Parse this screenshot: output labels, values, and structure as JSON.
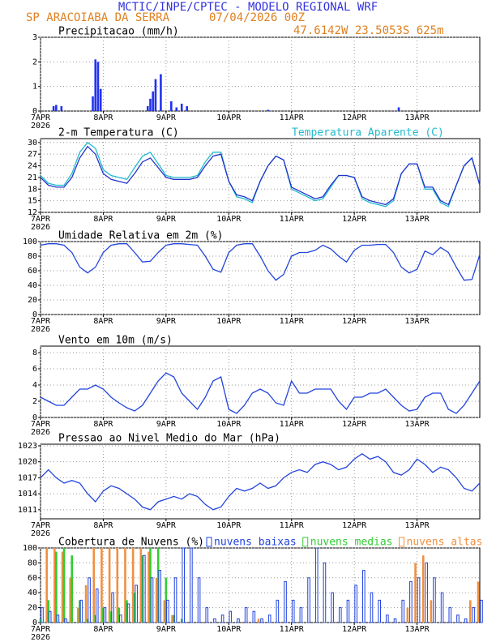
{
  "header": {
    "title": "MCTIC/INPE/CPTEC - MODELO REGIONAL WRF",
    "location": "SP ARACOIABA DA SERRA",
    "run": "07/04/2026 00Z",
    "coords": "47.6142W 23.5053S 625m"
  },
  "chart_data": [
    {
      "type": "bar",
      "title": "Precipitacao (mm/h)",
      "year_label": "2026",
      "x": [
        5,
        6,
        8,
        20,
        21,
        22,
        23,
        41,
        42,
        43,
        44,
        46,
        50,
        52,
        54,
        56,
        87,
        137
      ],
      "series": [
        {
          "color": "#2233ee",
          "values": [
            0.2,
            0.25,
            0.2,
            0.6,
            2.1,
            2.0,
            0.9,
            0.2,
            0.5,
            0.8,
            1.3,
            1.5,
            0.4,
            0.15,
            0.3,
            0.2,
            0.05,
            0.15
          ]
        }
      ],
      "xlim": [
        0,
        168
      ],
      "xticks": [
        {
          "value": 0,
          "label": "7APR"
        },
        {
          "value": 24,
          "label": "8APR"
        },
        {
          "value": 48,
          "label": "9APR"
        },
        {
          "value": 72,
          "label": "10APR"
        },
        {
          "value": 96,
          "label": "11APR"
        },
        {
          "value": 120,
          "label": "12APR"
        },
        {
          "value": 144,
          "label": "13APR"
        }
      ],
      "ylim": [
        0,
        3
      ],
      "yticks": [
        0,
        1,
        2,
        3
      ],
      "grid": true
    },
    {
      "type": "line",
      "year_label": "2026",
      "x": [
        0,
        3,
        6,
        9,
        12,
        15,
        18,
        21,
        24,
        27,
        30,
        33,
        36,
        39,
        42,
        45,
        48,
        51,
        54,
        57,
        60,
        63,
        66,
        69,
        72,
        75,
        78,
        81,
        84,
        87,
        90,
        93,
        96,
        99,
        102,
        105,
        108,
        111,
        114,
        117,
        120,
        123,
        126,
        129,
        132,
        135,
        138,
        141,
        144,
        147,
        150,
        153,
        156,
        159,
        162,
        165,
        168
      ],
      "series": [
        {
          "name": "2-m Temperatura (C)",
          "color": "#2233cc",
          "values": [
            21,
            19,
            18.5,
            18.5,
            21,
            26,
            29,
            27,
            22,
            20.5,
            20,
            19.5,
            22,
            25,
            26,
            23.5,
            21,
            20.5,
            20.5,
            20.5,
            21,
            24,
            26.5,
            27,
            20,
            16.5,
            16,
            15,
            20,
            24,
            26.5,
            25.5,
            18.5,
            17.5,
            16.5,
            15.5,
            16,
            19,
            21.5,
            21.5,
            21,
            16,
            15,
            14.5,
            14,
            15.5,
            22,
            24.5,
            24.5,
            18.5,
            18.5,
            15,
            14,
            19,
            24,
            26,
            19
          ]
        },
        {
          "name": "Temperatura Aparente (C)",
          "color": "#22bbcc",
          "values": [
            21.5,
            19.5,
            19,
            19,
            22,
            27.5,
            30,
            28.5,
            23,
            21.5,
            21,
            20.5,
            23.5,
            26.5,
            27.5,
            24.5,
            21.5,
            21,
            21,
            21,
            21.5,
            25,
            27.5,
            27.5,
            20,
            16,
            15.5,
            14.5,
            20,
            24,
            26.5,
            25.5,
            18,
            17,
            16,
            15,
            15.5,
            18.5,
            21.5,
            21.5,
            21,
            15.5,
            14.5,
            14,
            13.5,
            15,
            22,
            24.5,
            24.5,
            18,
            18,
            14.5,
            13.5,
            19,
            24,
            26,
            19
          ]
        }
      ],
      "xlim": [
        0,
        168
      ],
      "xticks": [
        {
          "value": 0,
          "label": "7APR"
        },
        {
          "value": 24,
          "label": "8APR"
        },
        {
          "value": 48,
          "label": "9APR"
        },
        {
          "value": 72,
          "label": "10APR"
        },
        {
          "value": 96,
          "label": "11APR"
        },
        {
          "value": 120,
          "label": "12APR"
        },
        {
          "value": 144,
          "label": "13APR"
        }
      ],
      "ylim": [
        12,
        31
      ],
      "yticks": [
        12,
        15,
        18,
        21,
        24,
        27,
        30
      ],
      "grid": true
    },
    {
      "type": "line",
      "title": "Umidade Relativa em 2m (%)",
      "year_label": "2026",
      "x": [
        0,
        3,
        6,
        9,
        12,
        15,
        18,
        21,
        24,
        27,
        30,
        33,
        36,
        39,
        42,
        45,
        48,
        51,
        54,
        57,
        60,
        63,
        66,
        69,
        72,
        75,
        78,
        81,
        84,
        87,
        90,
        93,
        96,
        99,
        102,
        105,
        108,
        111,
        114,
        117,
        120,
        123,
        126,
        129,
        132,
        135,
        138,
        141,
        144,
        147,
        150,
        153,
        156,
        159,
        162,
        165,
        168
      ],
      "series": [
        {
          "color": "#2244dd",
          "values": [
            95,
            97,
            97,
            95,
            85,
            65,
            57,
            65,
            85,
            95,
            97,
            97,
            85,
            72,
            73,
            85,
            95,
            97,
            97,
            96,
            95,
            80,
            62,
            58,
            85,
            95,
            97,
            97,
            80,
            60,
            47,
            55,
            80,
            85,
            85,
            88,
            95,
            90,
            80,
            72,
            88,
            95,
            95,
            96,
            96,
            85,
            65,
            57,
            62,
            87,
            82,
            92,
            85,
            65,
            47,
            48,
            82
          ]
        }
      ],
      "xlim": [
        0,
        168
      ],
      "xticks": [
        {
          "value": 0,
          "label": "7APR"
        },
        {
          "value": 24,
          "label": "8APR"
        },
        {
          "value": 48,
          "label": "9APR"
        },
        {
          "value": 72,
          "label": "10APR"
        },
        {
          "value": 96,
          "label": "11APR"
        },
        {
          "value": 120,
          "label": "12APR"
        },
        {
          "value": 144,
          "label": "13APR"
        }
      ],
      "ylim": [
        0,
        100
      ],
      "yticks": [
        0,
        20,
        40,
        60,
        80,
        100
      ],
      "grid": true
    },
    {
      "type": "line",
      "title": "Vento em 10m (m/s)",
      "year_label": "2026",
      "x": [
        0,
        3,
        6,
        9,
        12,
        15,
        18,
        21,
        24,
        27,
        30,
        33,
        36,
        39,
        42,
        45,
        48,
        51,
        54,
        57,
        60,
        63,
        66,
        69,
        72,
        75,
        78,
        81,
        84,
        87,
        90,
        93,
        96,
        99,
        102,
        105,
        108,
        111,
        114,
        117,
        120,
        123,
        126,
        129,
        132,
        135,
        138,
        141,
        144,
        147,
        150,
        153,
        156,
        159,
        162,
        165,
        168
      ],
      "series": [
        {
          "color": "#2244dd",
          "values": [
            2.5,
            2,
            1.5,
            1.5,
            2.5,
            3.5,
            3.5,
            4,
            3.5,
            2.5,
            1.8,
            1.2,
            0.8,
            1.5,
            3,
            4.5,
            5.5,
            5,
            3,
            2,
            1,
            2.5,
            4.5,
            5,
            1,
            0.5,
            1.5,
            3,
            3.5,
            3,
            1.8,
            1.5,
            4.5,
            3,
            3,
            3.5,
            3.5,
            3.5,
            2,
            1,
            2.5,
            2.5,
            3,
            3,
            3.5,
            2.5,
            1.5,
            0.8,
            1,
            2.5,
            3,
            3,
            1,
            0.5,
            1.5,
            3,
            4.5
          ]
        }
      ],
      "xlim": [
        0,
        168
      ],
      "xticks": [
        {
          "value": 0,
          "label": "7APR"
        },
        {
          "value": 24,
          "label": "8APR"
        },
        {
          "value": 48,
          "label": "9APR"
        },
        {
          "value": 72,
          "label": "10APR"
        },
        {
          "value": 96,
          "label": "11APR"
        },
        {
          "value": 120,
          "label": "12APR"
        },
        {
          "value": 144,
          "label": "13APR"
        }
      ],
      "ylim": [
        0,
        8.8
      ],
      "yticks": [
        0,
        2,
        4,
        6,
        8
      ],
      "grid": true
    },
    {
      "type": "line",
      "title": "Pressao ao Nivel Medio do Mar (hPa)",
      "year_label": "2026",
      "x": [
        0,
        3,
        6,
        9,
        12,
        15,
        18,
        21,
        24,
        27,
        30,
        33,
        36,
        39,
        42,
        45,
        48,
        51,
        54,
        57,
        60,
        63,
        66,
        69,
        72,
        75,
        78,
        81,
        84,
        87,
        90,
        93,
        96,
        99,
        102,
        105,
        108,
        111,
        114,
        117,
        120,
        123,
        126,
        129,
        132,
        135,
        138,
        141,
        144,
        147,
        150,
        153,
        156,
        159,
        162,
        165,
        168
      ],
      "series": [
        {
          "color": "#2244dd",
          "values": [
            1017,
            1018.5,
            1017,
            1016,
            1016.5,
            1016,
            1014,
            1012.5,
            1014.5,
            1015.5,
            1015,
            1014,
            1013,
            1011.5,
            1011,
            1012.5,
            1013,
            1013.5,
            1013,
            1014,
            1013.5,
            1012,
            1011,
            1011.5,
            1013.5,
            1015,
            1014.5,
            1015,
            1016,
            1015,
            1015.5,
            1017,
            1018,
            1018.5,
            1018,
            1019.5,
            1020,
            1019.5,
            1018.5,
            1019,
            1020.5,
            1021.5,
            1020.5,
            1021,
            1020,
            1018,
            1017.5,
            1018.5,
            1020.5,
            1019.5,
            1018,
            1019,
            1018.5,
            1017,
            1015,
            1014.5,
            1016
          ]
        }
      ],
      "xlim": [
        0,
        168
      ],
      "xticks": [
        {
          "value": 0,
          "label": "7APR"
        },
        {
          "value": 24,
          "label": "8APR"
        },
        {
          "value": 48,
          "label": "9APR"
        },
        {
          "value": 72,
          "label": "10APR"
        },
        {
          "value": 96,
          "label": "11APR"
        },
        {
          "value": 120,
          "label": "12APR"
        },
        {
          "value": 144,
          "label": "13APR"
        }
      ],
      "ylim": [
        1009.3,
        1023.3
      ],
      "yticks": [
        1011,
        1014,
        1017,
        1020,
        1023
      ],
      "grid": true
    },
    {
      "type": "bar",
      "title": "Cobertura de Nuvens (%)",
      "year_label": "2026",
      "x": [
        0,
        3,
        6,
        9,
        12,
        15,
        18,
        21,
        24,
        27,
        30,
        33,
        36,
        39,
        42,
        45,
        48,
        51,
        54,
        57,
        60,
        63,
        66,
        69,
        72,
        75,
        78,
        81,
        84,
        87,
        90,
        93,
        96,
        99,
        102,
        105,
        108,
        111,
        114,
        117,
        120,
        123,
        126,
        129,
        132,
        135,
        138,
        141,
        144,
        147,
        150,
        153,
        156,
        159,
        162,
        165,
        168
      ],
      "series": [
        {
          "name": "nuvens altas",
          "color": "#f09040",
          "values": [
            0,
            100,
            100,
            95,
            60,
            20,
            50,
            100,
            100,
            100,
            100,
            100,
            100,
            100,
            95,
            60,
            30,
            10,
            0,
            0,
            0,
            0,
            0,
            0,
            0,
            0,
            0,
            0,
            5,
            0,
            0,
            0,
            0,
            0,
            0,
            0,
            0,
            0,
            0,
            0,
            0,
            0,
            0,
            0,
            0,
            0,
            0,
            20,
            80,
            90,
            30,
            0,
            0,
            0,
            0,
            30,
            55
          ]
        },
        {
          "name": "nuvens medias",
          "color": "#33cc33",
          "values": [
            5,
            30,
            95,
            100,
            90,
            30,
            5,
            10,
            20,
            15,
            20,
            30,
            40,
            90,
            100,
            100,
            60,
            10,
            5,
            0,
            0,
            0,
            0,
            0,
            0,
            0,
            0,
            0,
            0,
            0,
            0,
            0,
            0,
            0,
            0,
            0,
            0,
            0,
            0,
            0,
            0,
            0,
            0,
            0,
            0,
            0,
            0,
            0,
            0,
            0,
            0,
            0,
            0,
            0,
            0,
            0,
            0
          ]
        },
        {
          "name": "nuvens baixas",
          "color": "#2244dd",
          "values": [
            20,
            15,
            10,
            5,
            0,
            30,
            60,
            45,
            20,
            40,
            10,
            25,
            50,
            90,
            60,
            70,
            30,
            60,
            100,
            100,
            60,
            20,
            5,
            10,
            15,
            5,
            20,
            15,
            5,
            10,
            30,
            55,
            30,
            20,
            60,
            100,
            80,
            40,
            20,
            30,
            50,
            70,
            40,
            30,
            10,
            5,
            30,
            55,
            60,
            80,
            60,
            40,
            20,
            10,
            5,
            20,
            30
          ]
        }
      ],
      "xlim": [
        0,
        168
      ],
      "xticks": [
        {
          "value": 0,
          "label": "7APR"
        },
        {
          "value": 24,
          "label": "8APR"
        },
        {
          "value": 48,
          "label": "9APR"
        },
        {
          "value": 72,
          "label": "10APR"
        },
        {
          "value": 96,
          "label": "11APR"
        },
        {
          "value": 120,
          "label": "12APR"
        },
        {
          "value": 144,
          "label": "13APR"
        }
      ],
      "ylim": [
        0,
        100
      ],
      "yticks": [
        0,
        20,
        40,
        60,
        80,
        100
      ],
      "grid": true
    }
  ]
}
